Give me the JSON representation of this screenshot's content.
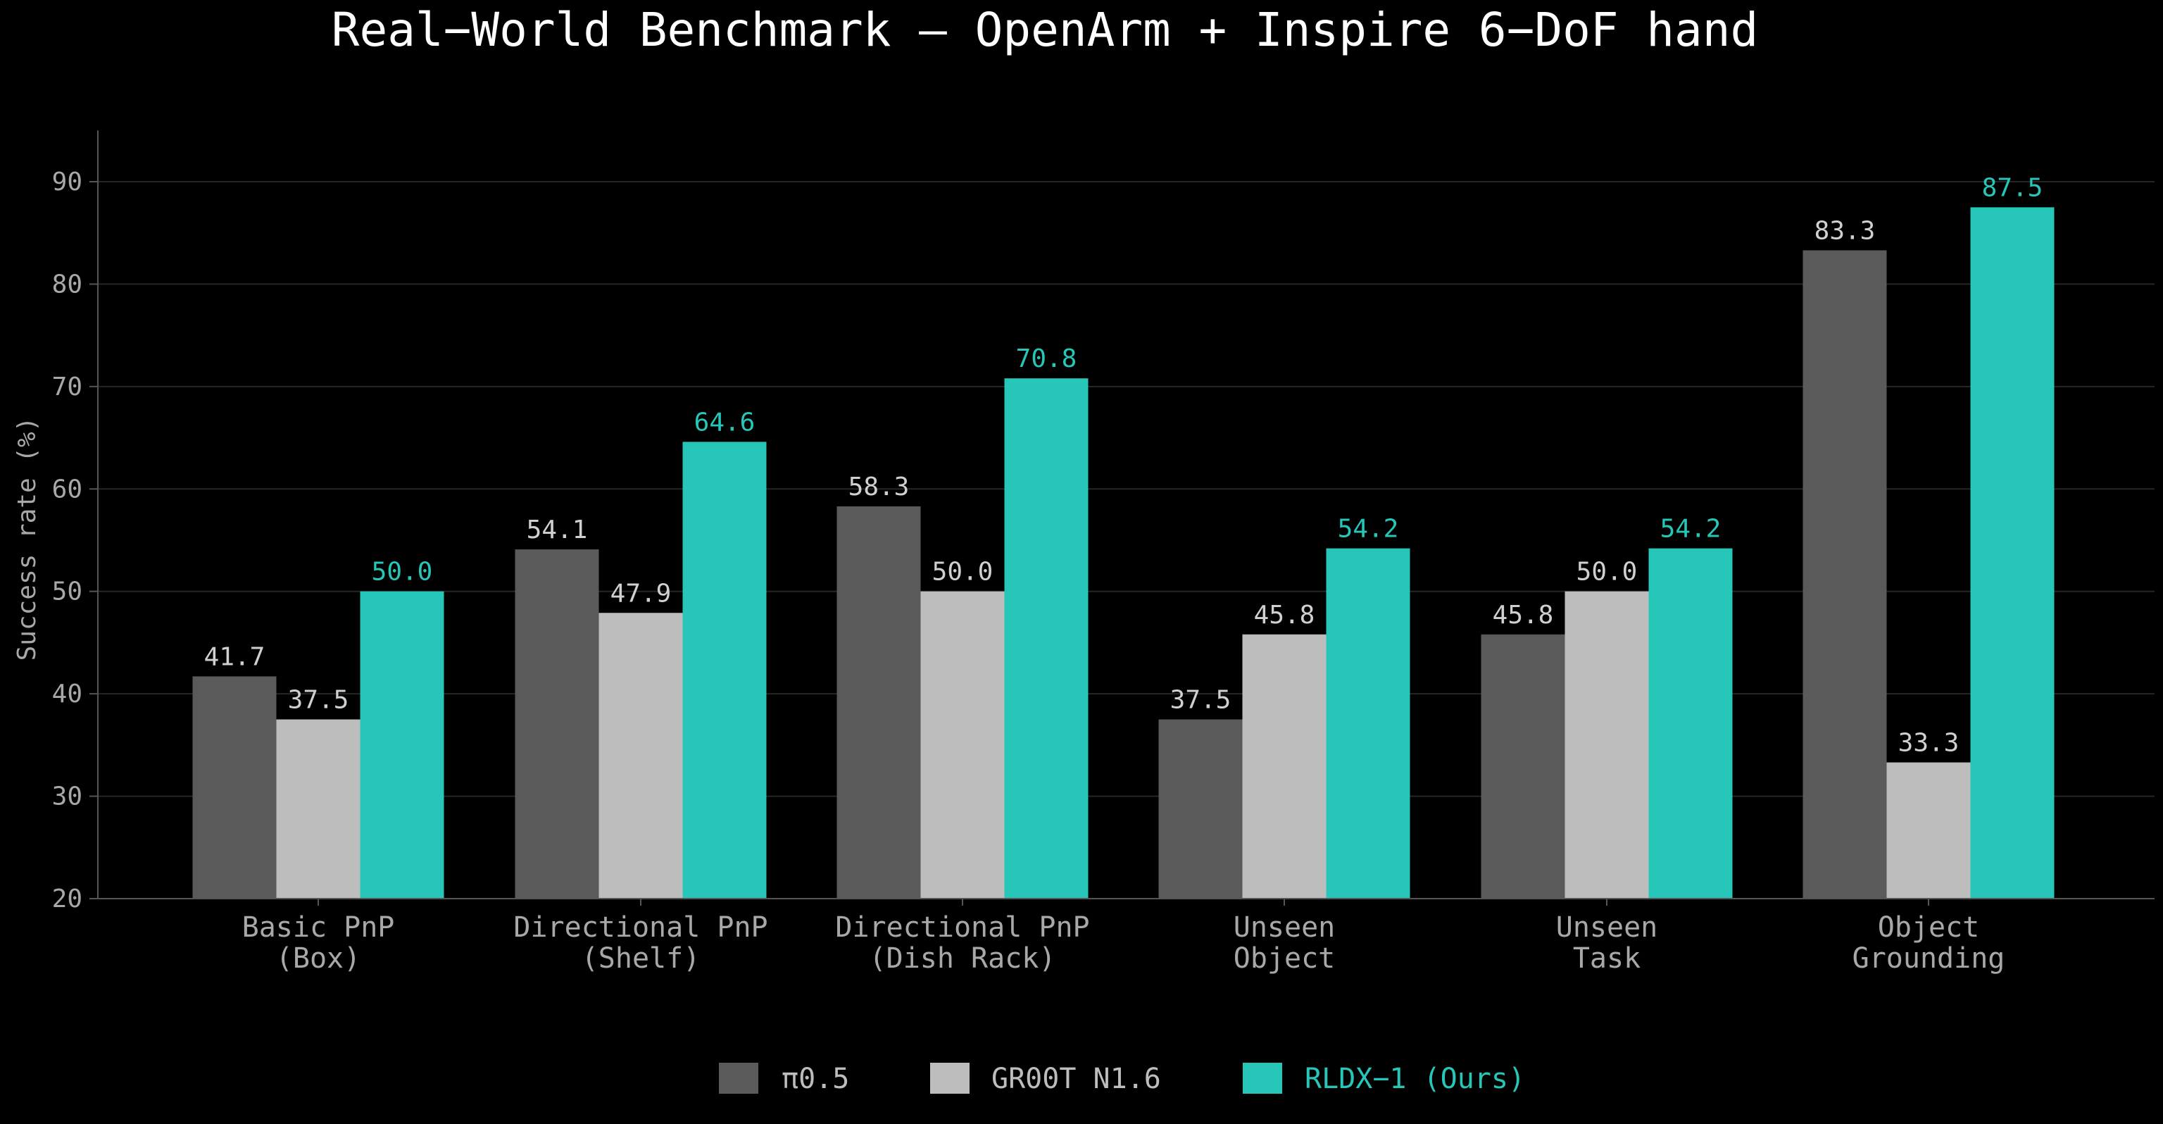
{
  "chart_data": {
    "type": "bar",
    "title": "Real−World Benchmark — OpenArm + Inspire 6−DoF hand",
    "xlabel": "",
    "ylabel": "Success rate (%)",
    "ylim": [
      20,
      95
    ],
    "yticks": [
      20,
      30,
      40,
      50,
      60,
      70,
      80,
      90
    ],
    "grid": "horizontal",
    "legend_position": "bottom-center",
    "categories": [
      [
        "Basic PnP",
        "(Box)"
      ],
      [
        "Directional PnP",
        "(Shelf)"
      ],
      [
        "Directional PnP",
        "(Dish Rack)"
      ],
      [
        "Unseen",
        "Object"
      ],
      [
        "Unseen",
        "Task"
      ],
      [
        "Object",
        "Grounding"
      ]
    ],
    "series": [
      {
        "name": "π0.5",
        "color": "#5a5a5a",
        "label_color": "#d0d0d0",
        "values": [
          41.7,
          54.1,
          58.3,
          37.5,
          45.8,
          83.3
        ],
        "labels": [
          "41.7",
          "54.1",
          "58.3",
          "37.5",
          "45.8",
          "83.3"
        ]
      },
      {
        "name": "GR00T N1.6",
        "color": "#bdbdbd",
        "label_color": "#d0d0d0",
        "values": [
          37.5,
          47.9,
          50.0,
          45.8,
          50.0,
          33.3
        ],
        "labels": [
          "37.5",
          "47.9",
          "50.0",
          "45.8",
          "50.0",
          "33.3"
        ]
      },
      {
        "name": "RLDX−1 (Ours)",
        "color": "#26c6b8",
        "label_color": "#26c6b8",
        "values": [
          50.0,
          64.6,
          70.8,
          54.2,
          54.2,
          87.5
        ],
        "labels": [
          "50.0",
          "64.6",
          "70.8",
          "54.2",
          "54.2",
          "87.5"
        ]
      }
    ]
  },
  "colors": {
    "background": "#000000",
    "title_text": "#ffffff",
    "axis_text": "#a8a8a8",
    "axis_line": "#555555",
    "grid_line": "#262626"
  }
}
